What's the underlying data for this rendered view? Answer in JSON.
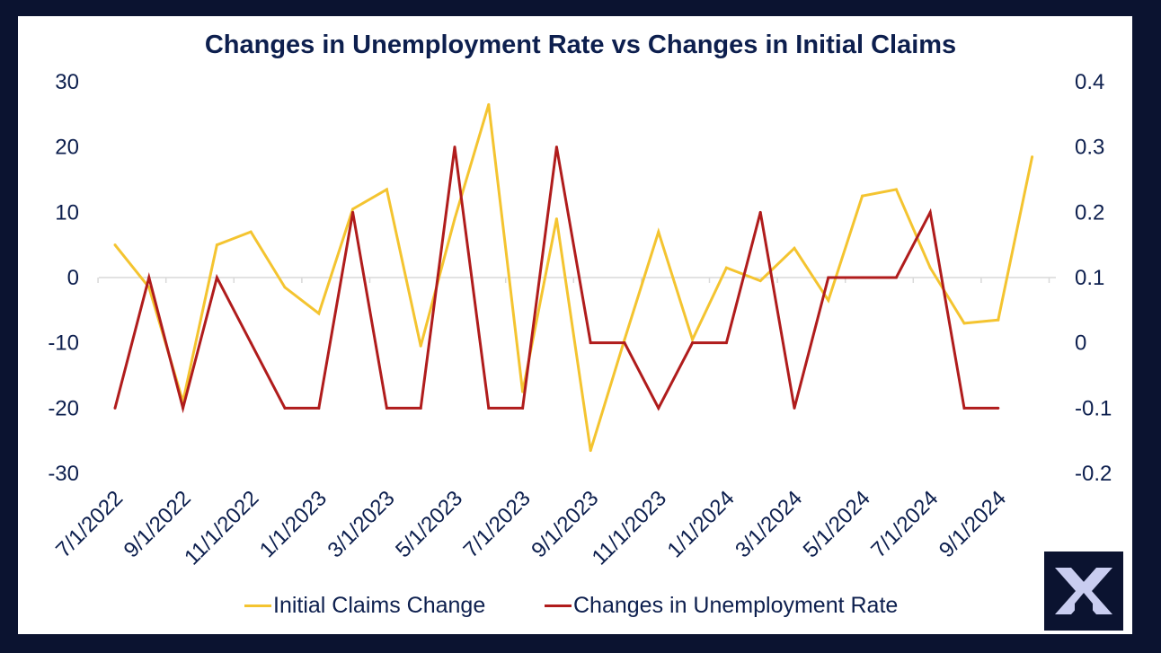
{
  "chart_data": {
    "type": "line",
    "title": "Changes in Unemployment Rate vs Changes in Initial Claims",
    "x": [
      "7/1/2022",
      "8/1/2022",
      "9/1/2022",
      "10/1/2022",
      "11/1/2022",
      "12/1/2022",
      "1/1/2023",
      "2/1/2023",
      "3/1/2023",
      "4/1/2023",
      "5/1/2023",
      "6/1/2023",
      "7/1/2023",
      "8/1/2023",
      "9/1/2023",
      "10/1/2023",
      "11/1/2023",
      "12/1/2023",
      "1/1/2024",
      "2/1/2024",
      "3/1/2024",
      "4/1/2024",
      "5/1/2024",
      "6/1/2024",
      "7/1/2024",
      "8/1/2024",
      "9/1/2024",
      "10/1/2024"
    ],
    "x_tick_labels": [
      "7/1/2022",
      "9/1/2022",
      "11/1/2022",
      "1/1/2023",
      "3/1/2023",
      "5/1/2023",
      "7/1/2023",
      "9/1/2023",
      "11/1/2023",
      "1/1/2024",
      "3/1/2024",
      "5/1/2024",
      "7/1/2024",
      "9/1/2024"
    ],
    "left_axis": {
      "ylim": [
        -30,
        30
      ],
      "ticks": [
        "30",
        "20",
        "10",
        "0",
        "-10",
        "-20",
        "-30"
      ]
    },
    "right_axis": {
      "ylim": [
        -0.2,
        0.4
      ],
      "ticks": [
        "0.4",
        "0.3",
        "0.2",
        "0.1",
        "0",
        "-0.1",
        "-0.2"
      ]
    },
    "series": [
      {
        "name": "Initial Claims Change",
        "axis": "left",
        "color": "#f4c430",
        "values": [
          5,
          -1.5,
          -19,
          5,
          7,
          -1.5,
          -5.5,
          10.5,
          13.5,
          -10.5,
          9,
          26.5,
          -17.5,
          9,
          -26.5,
          -9.5,
          7,
          -9.5,
          1.5,
          -0.5,
          4.5,
          -3.5,
          12.5,
          13.5,
          1.5,
          -7,
          -6.5,
          18.5
        ]
      },
      {
        "name": "Changes in Unemployment Rate",
        "axis": "right",
        "color": "#b01c1c",
        "values": [
          -0.1,
          0.1,
          -0.1,
          0.1,
          0,
          -0.1,
          -0.1,
          0.2,
          -0.1,
          -0.1,
          0.3,
          -0.1,
          -0.1,
          0.3,
          0,
          0,
          -0.1,
          0,
          0,
          0.2,
          -0.1,
          0.1,
          0.1,
          0.1,
          0.2,
          -0.1,
          -0.1,
          null
        ]
      }
    ],
    "grid": false,
    "legend_position": "bottom"
  },
  "logo": {
    "icon": "x-logo-icon",
    "color": "#c9cdf0"
  }
}
